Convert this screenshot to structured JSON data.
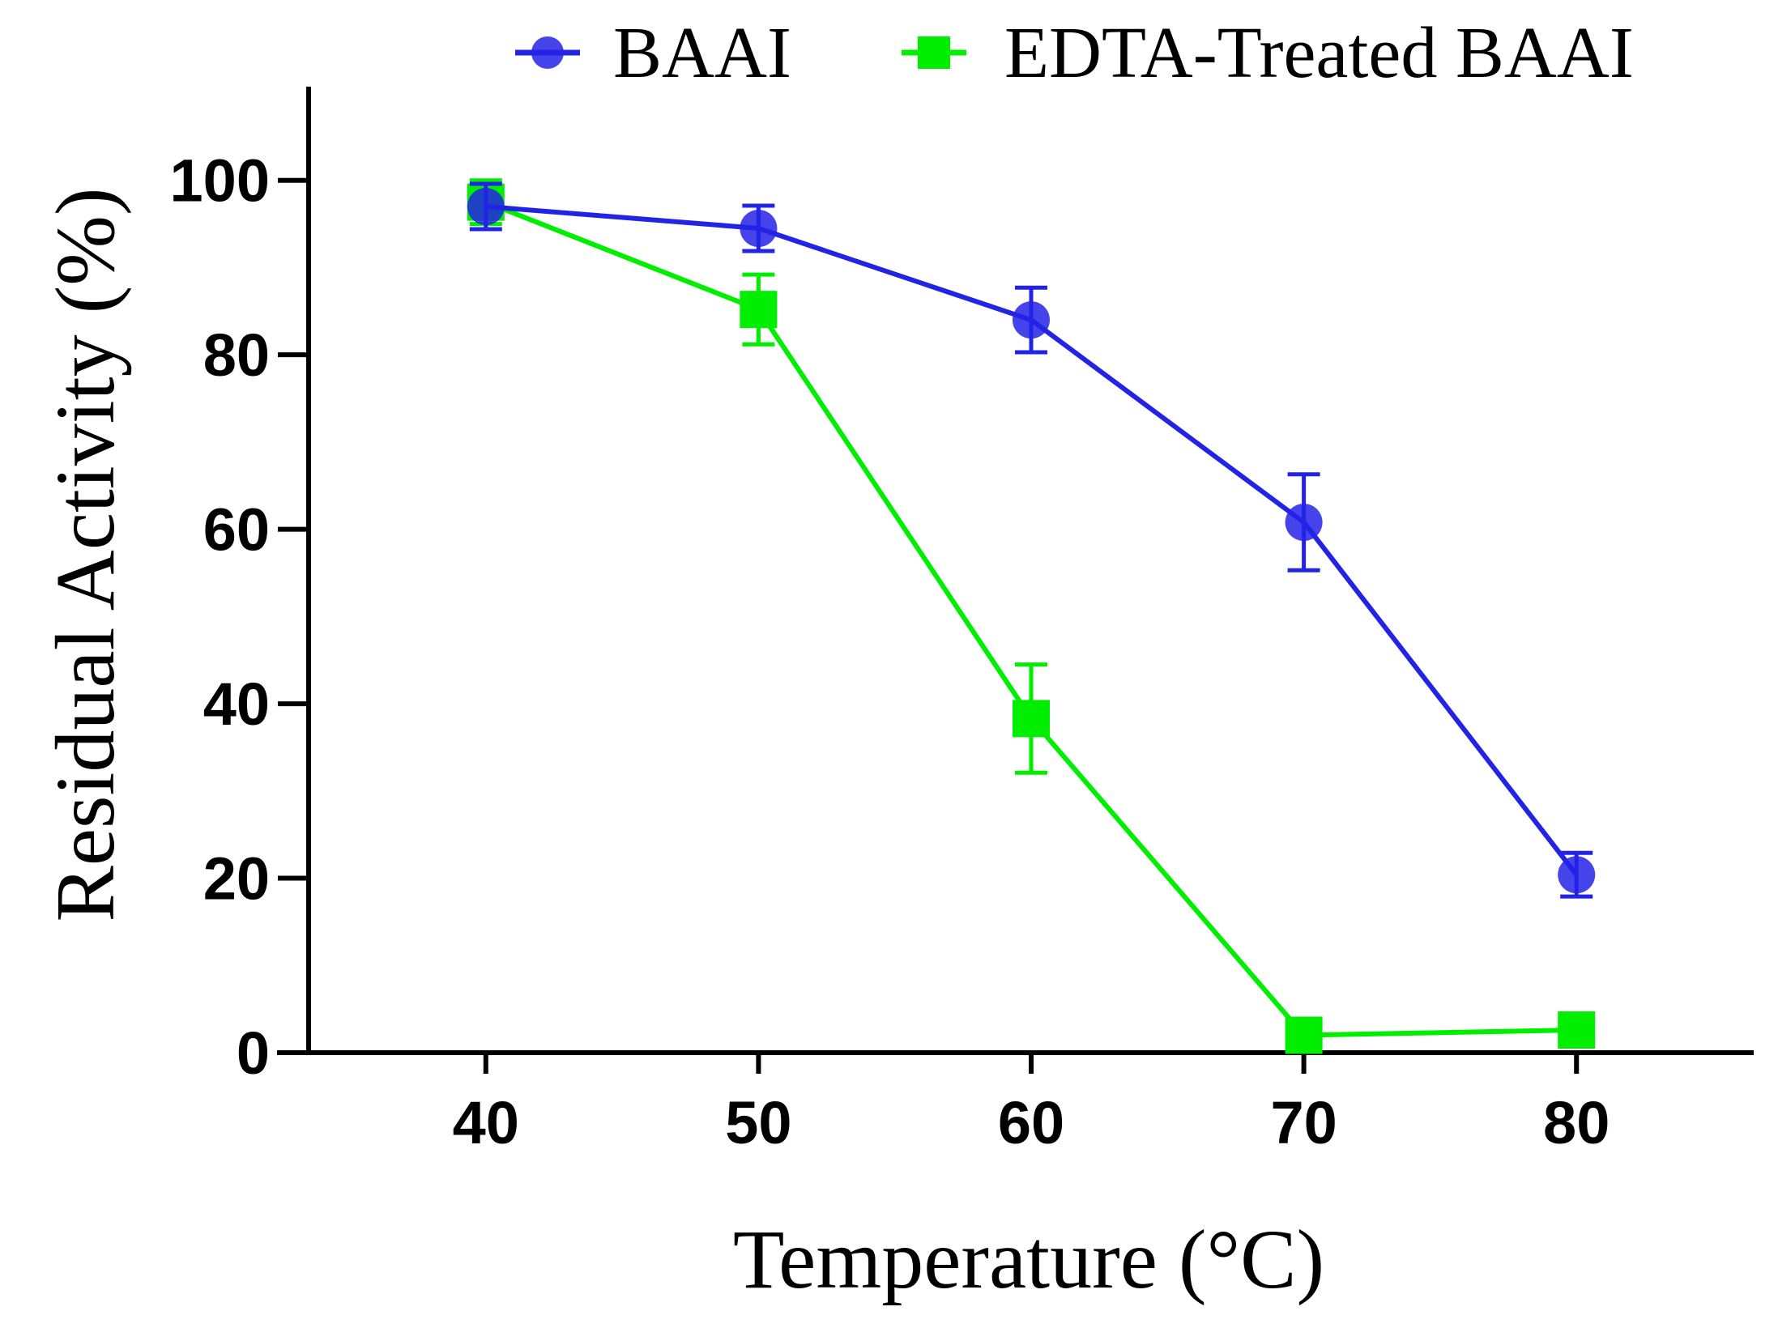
{
  "chart_data": {
    "type": "line",
    "title": "",
    "xlabel": "Temperature (°C)",
    "ylabel": "Residual Activity (%)",
    "xlim": [
      33.5,
      86.5
    ],
    "ylim": [
      0,
      110
    ],
    "x_ticks": [
      40,
      50,
      60,
      70,
      80
    ],
    "x_tick_labels": [
      "40",
      "50",
      "60",
      "70",
      "80"
    ],
    "y_ticks": [
      0,
      20,
      40,
      60,
      80,
      100
    ],
    "y_tick_labels": [
      "0",
      "20",
      "40",
      "60",
      "80",
      "100"
    ],
    "grid": false,
    "legend_position": "top",
    "series": [
      {
        "name": "BAAI",
        "color": "#2323e6",
        "marker": "circle",
        "x": [
          40,
          50,
          60,
          70,
          80
        ],
        "values": [
          97,
          94.5,
          84,
          60.8,
          20.4
        ],
        "error": [
          2.6,
          2.6,
          3.7,
          5.5,
          2.5
        ]
      },
      {
        "name": "EDTA-Treated BAAI",
        "color": "#00ee00",
        "marker": "square",
        "x": [
          40,
          50,
          60,
          70,
          80
        ],
        "values": [
          97.5,
          85.2,
          38.3,
          2,
          2.6
        ],
        "error": [
          2.5,
          4,
          6.2,
          0,
          0
        ]
      }
    ]
  }
}
